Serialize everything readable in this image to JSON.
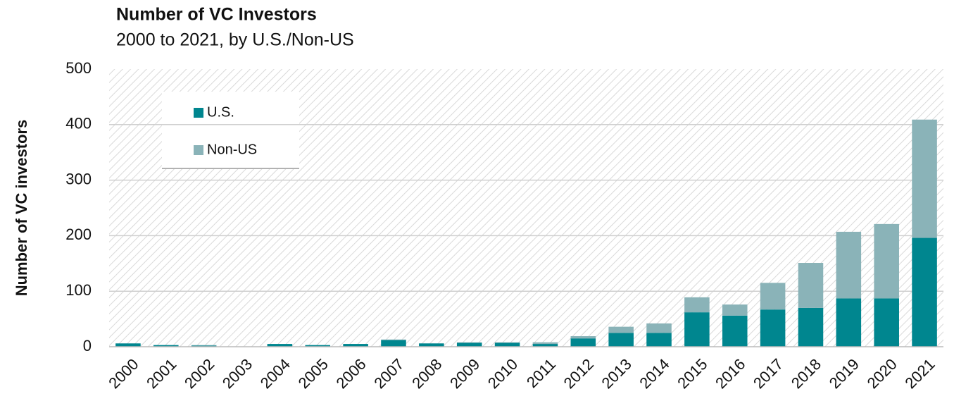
{
  "chart_data": {
    "type": "stacked_bar",
    "title": "Number of VC Investors",
    "subtitle": "2000 to 2021, by U.S./Non-US",
    "y_label": "Number of VC investors",
    "categories": [
      "2000",
      "2001",
      "2002",
      "2003",
      "2004",
      "2005",
      "2006",
      "2007",
      "2008",
      "2009",
      "2010",
      "2011",
      "2012",
      "2013",
      "2014",
      "2015",
      "2016",
      "2017",
      "2018",
      "2019",
      "2020",
      "2021"
    ],
    "series": [
      {
        "name": "U.S.",
        "color": "#00868f",
        "values": [
          6,
          3,
          2,
          0,
          5,
          3,
          5,
          12,
          6,
          7,
          7,
          5,
          15,
          25,
          25,
          62,
          56,
          67,
          70,
          87,
          87,
          196
        ]
      },
      {
        "name": "Non-US",
        "color": "#8ab3b8",
        "values": [
          0,
          0,
          1,
          0,
          0,
          0,
          0,
          1,
          0,
          1,
          1,
          3,
          4,
          11,
          17,
          27,
          20,
          48,
          81,
          120,
          134,
          213
        ]
      }
    ],
    "ylim": [
      0,
      500
    ],
    "yticks": [
      0,
      100,
      200,
      300,
      400,
      500
    ],
    "grid": true
  }
}
